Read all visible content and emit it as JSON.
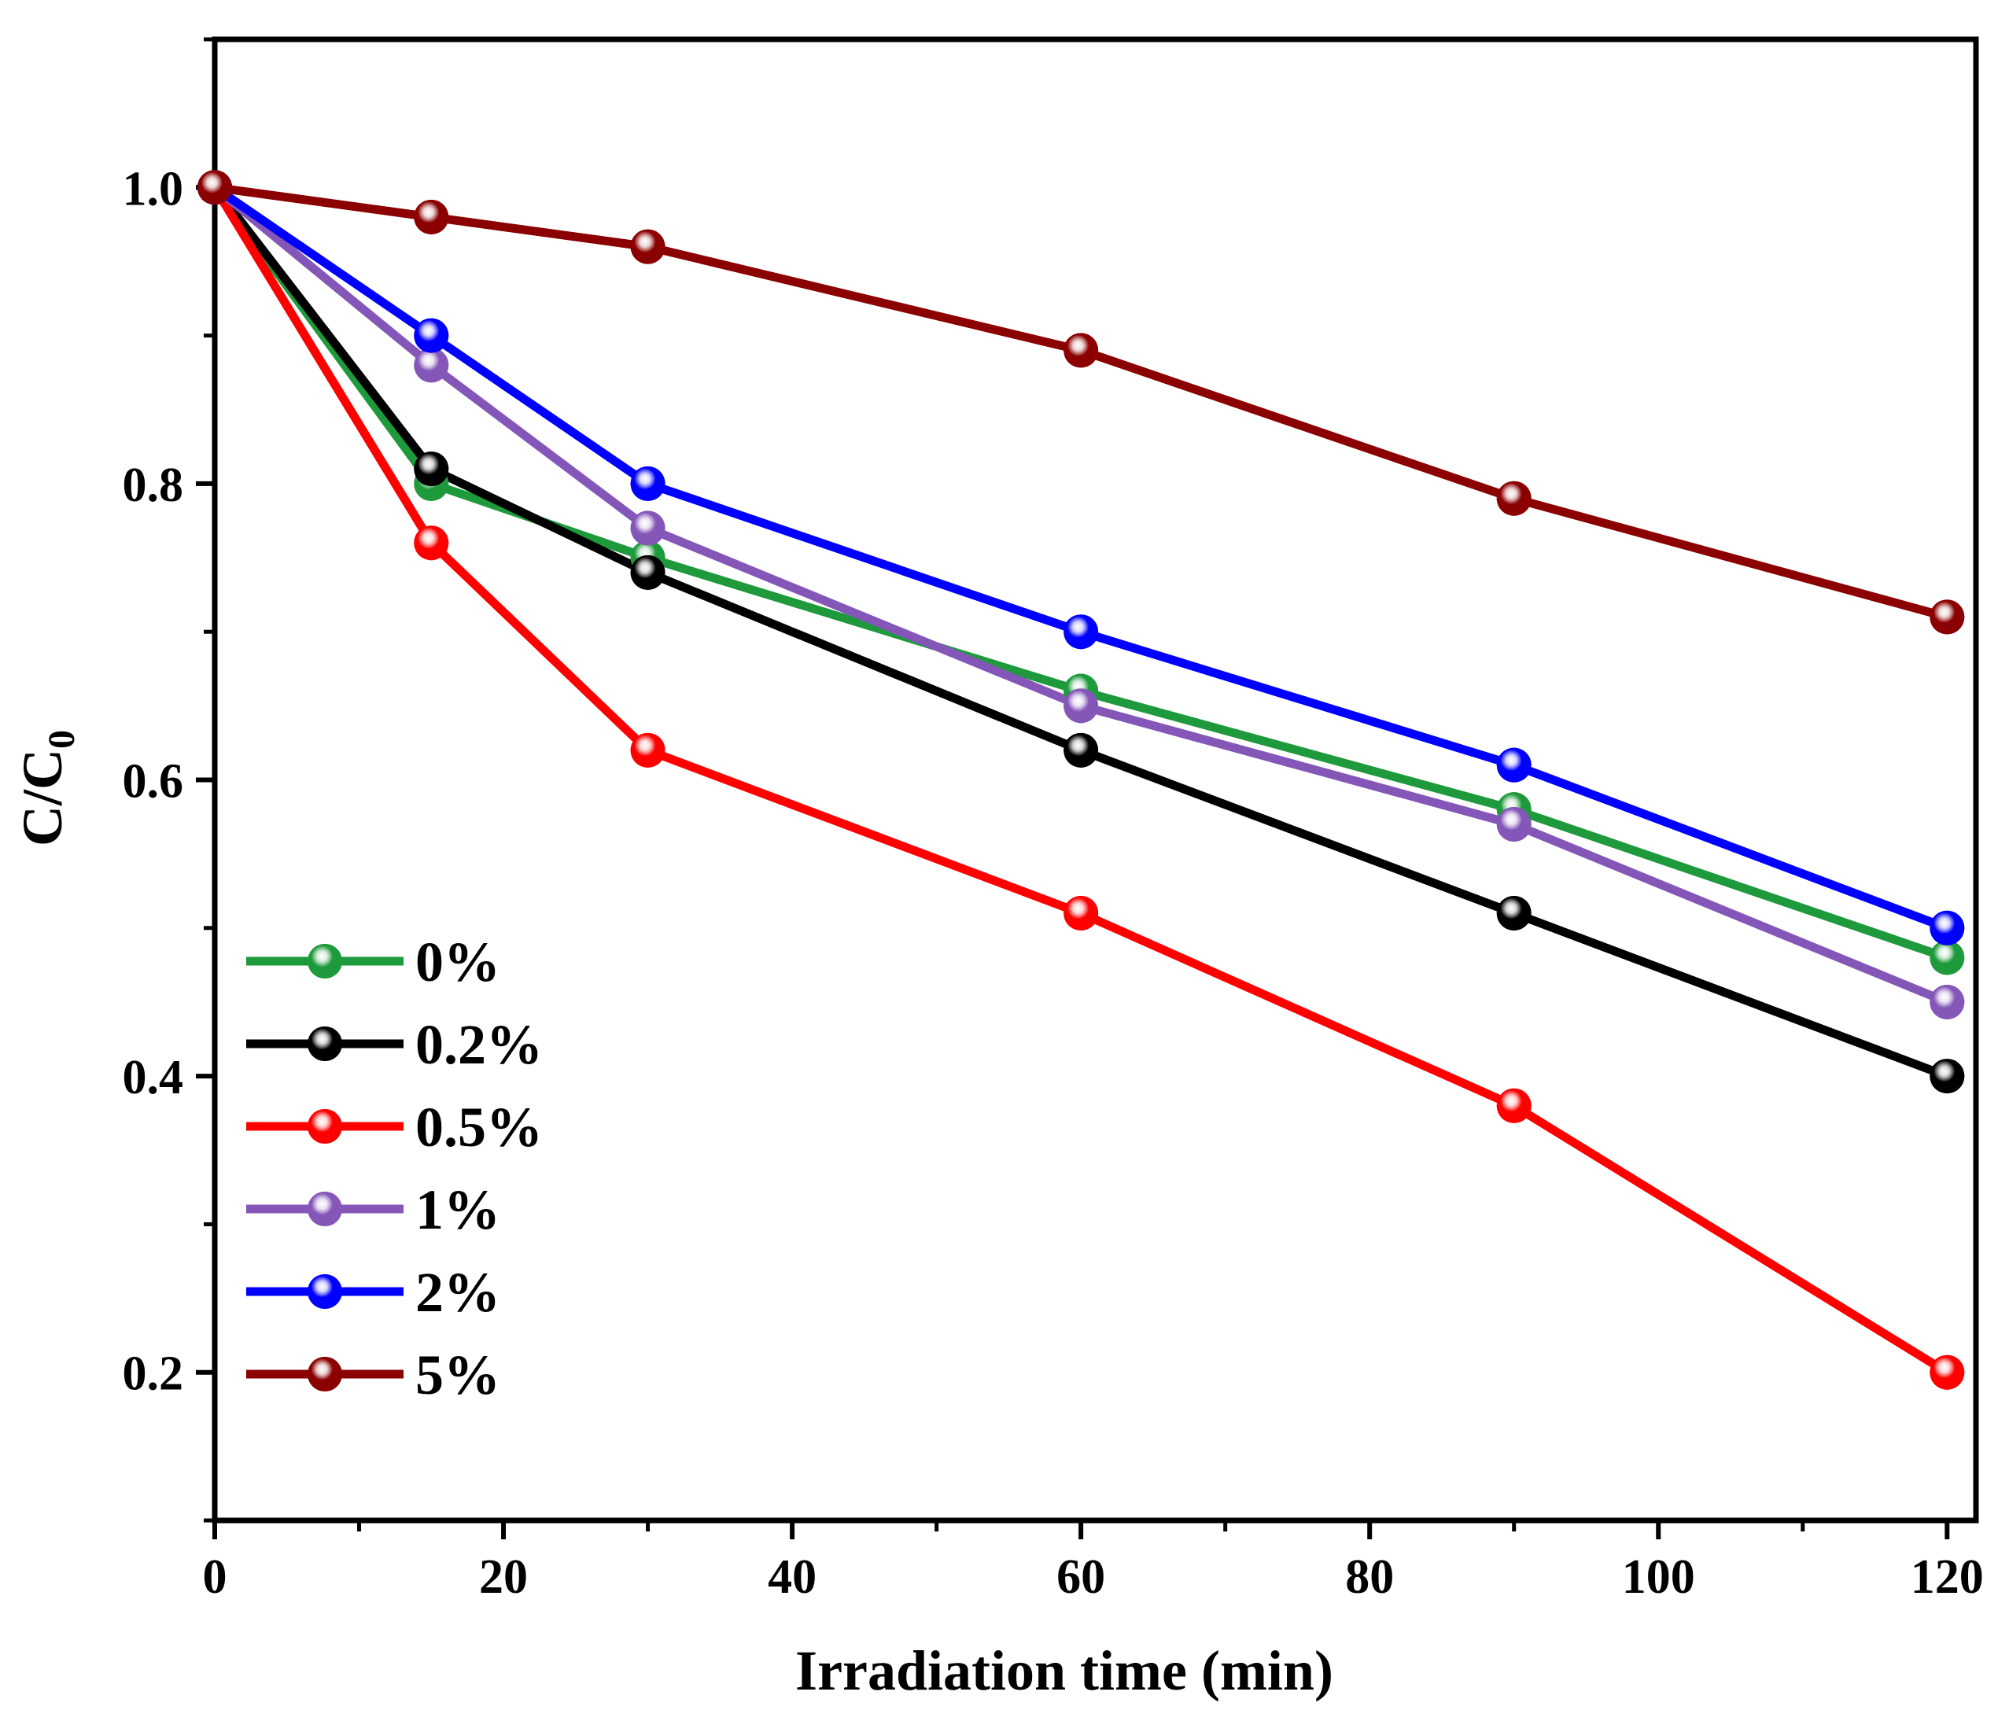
{
  "chart_data": {
    "type": "line",
    "title": "",
    "xlabel": "Irradiation time (min)",
    "ylabel_main": "C/C",
    "ylabel_sub": "0",
    "xlim": [
      0,
      122
    ],
    "ylim": [
      0.1,
      1.1
    ],
    "xticks": [
      0,
      20,
      40,
      60,
      80,
      100,
      120
    ],
    "xtick_labels": [
      "0",
      "20",
      "40",
      "60",
      "80",
      "100",
      "120"
    ],
    "yticks": [
      0.2,
      0.4,
      0.6,
      0.8,
      1.0
    ],
    "ytick_labels": [
      "0.2",
      "0.4",
      "0.6",
      "0.8",
      "1.0"
    ],
    "grid": false,
    "legend_position": "bottom-left",
    "x": [
      0,
      15,
      30,
      60,
      90,
      120
    ],
    "series": [
      {
        "name": "0%",
        "color": "#1e9a3c",
        "values": [
          1.0,
          0.8,
          0.75,
          0.66,
          0.58,
          0.48
        ]
      },
      {
        "name": "0.2%",
        "color": "#000000",
        "values": [
          1.0,
          0.81,
          0.74,
          0.62,
          0.51,
          0.4
        ]
      },
      {
        "name": "0.5%",
        "color": "#ff0000",
        "values": [
          1.0,
          0.76,
          0.62,
          0.51,
          0.38,
          0.2
        ]
      },
      {
        "name": "1%",
        "color": "#8456b8",
        "values": [
          1.0,
          0.88,
          0.77,
          0.65,
          0.57,
          0.45
        ]
      },
      {
        "name": "2%",
        "color": "#0000ff",
        "values": [
          1.0,
          0.9,
          0.8,
          0.7,
          0.61,
          0.5
        ]
      },
      {
        "name": "5%",
        "color": "#8b0000",
        "values": [
          1.0,
          0.98,
          0.96,
          0.89,
          0.79,
          0.71
        ]
      }
    ]
  }
}
